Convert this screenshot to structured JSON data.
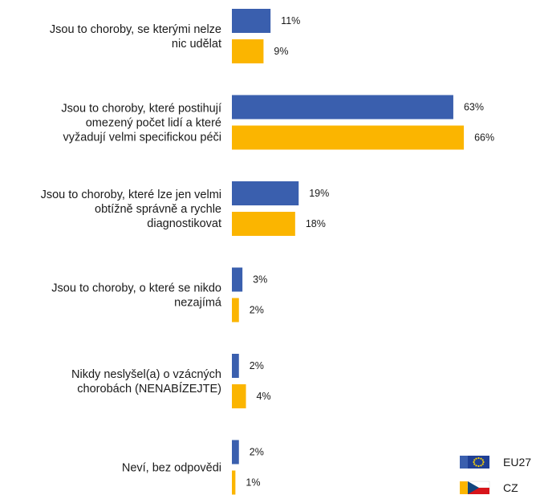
{
  "chart_data": {
    "type": "bar",
    "orientation": "horizontal",
    "categories": [
      [
        "Jsou to choroby, se kterými nelze",
        "nic udělat"
      ],
      [
        "Jsou to choroby, které postihují",
        "omezený počet lidí a které",
        "vyžadují velmi specifickou péči"
      ],
      [
        "Jsou to choroby, které lze jen velmi",
        "obtížně správně a rychle",
        "diagnostikovat"
      ],
      [
        "Jsou to choroby, o které se nikdo",
        "nezajímá"
      ],
      [
        "Nikdy neslyšel(a) o vzácných",
        "chorobách (NENABÍZEJTE)"
      ],
      [
        "Neví, bez odpovědi"
      ]
    ],
    "series": [
      {
        "name": "EU27",
        "color": "#3a5fae",
        "values": [
          11,
          63,
          19,
          3,
          2,
          2
        ],
        "labels": [
          "11%",
          "63%",
          "19%",
          "3%",
          "2%",
          "2%"
        ]
      },
      {
        "name": "CZ",
        "color": "#fbb500",
        "values": [
          9,
          66,
          18,
          2,
          4,
          1
        ],
        "labels": [
          "9%",
          "66%",
          "18%",
          "2%",
          "4%",
          "1%"
        ]
      }
    ],
    "value_suffix": "%",
    "xlim": [
      0,
      66
    ],
    "grid": false,
    "legend_position": "bottom-right"
  },
  "legend": {
    "items": [
      {
        "label": "EU27",
        "icon": "eu-flag-icon"
      },
      {
        "label": "CZ",
        "icon": "czech-flag-icon"
      }
    ]
  }
}
